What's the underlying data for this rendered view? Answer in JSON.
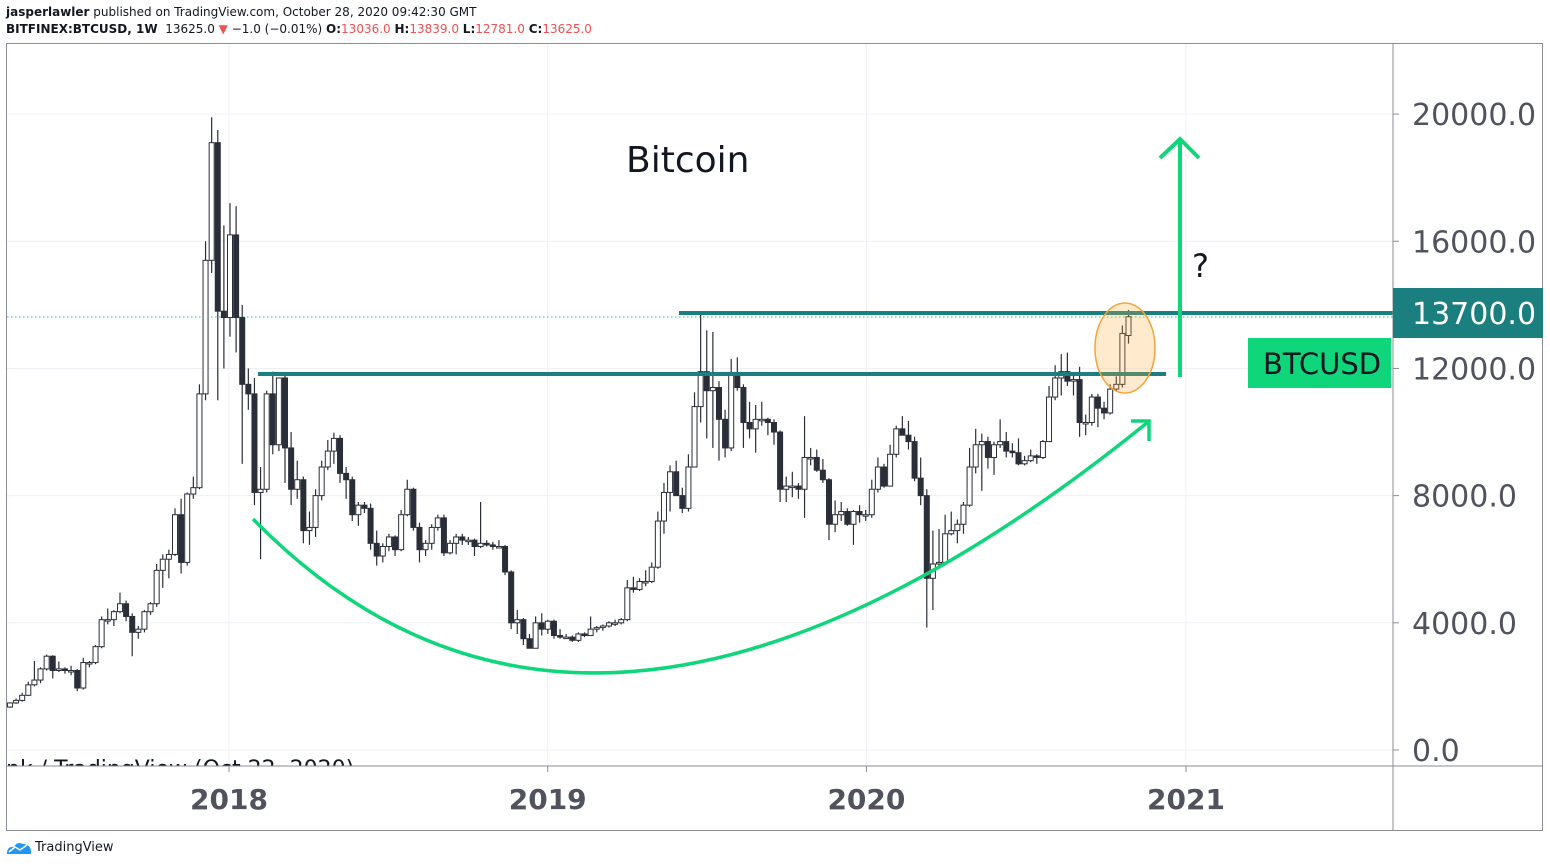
{
  "header": {
    "publisher": "jasperlawler",
    "published_text": "published on TradingView.com, October 28, 2020 09:42:30 GMT",
    "symbol": "BITFINEX:BTCUSD, 1W",
    "last": "13625.0",
    "change": "−1.0 (−0.01%)",
    "o_label": "O:",
    "o": "13036.0",
    "h_label": "H:",
    "h": "13839.0",
    "l_label": "L:",
    "l": "12781.0",
    "c_label": "C:",
    "c": "13625.0"
  },
  "annotations": {
    "title": "Bitcoin",
    "question": "?",
    "symbol_label": "BTCUSD",
    "price_label": "13700.0",
    "watermark": "nk / TradingView (Oct 22, 2020)"
  },
  "footer": {
    "brand": "TradingView"
  },
  "colors": {
    "up_fill": "#ffffff",
    "down_fill": "#2a2e39",
    "teal": "#1b7f7f",
    "green": "#0fd67a",
    "orange": "#f7a337"
  },
  "chart_data": {
    "type": "candlestick",
    "interval": "1W",
    "ylim": [
      0,
      21500
    ],
    "y_ticks": [
      "0.0",
      "4000.0",
      "8000.0",
      "12000.0",
      "16000.0",
      "20000.0"
    ],
    "y_tick_values": [
      0,
      4000,
      8000,
      12000,
      16000,
      20000
    ],
    "x_ticks": [
      "2018",
      "2019",
      "2020",
      "2021"
    ],
    "x_tick_dates": [
      "2018-01-01",
      "2019-01-01",
      "2020-01-01",
      "2021-01-01"
    ],
    "grid": true,
    "horizontal_levels": [
      11800,
      13700
    ],
    "current_price": 13625,
    "candles": [
      [
        "2017-04-24",
        1350,
        1500,
        1330,
        1480
      ],
      [
        "2017-05-01",
        1480,
        1620,
        1450,
        1560
      ],
      [
        "2017-05-08",
        1560,
        1800,
        1520,
        1720
      ],
      [
        "2017-05-15",
        1720,
        2150,
        1700,
        2050
      ],
      [
        "2017-05-22",
        2050,
        2800,
        2000,
        2200
      ],
      [
        "2017-05-29",
        2200,
        2600,
        2100,
        2550
      ],
      [
        "2017-06-05",
        2550,
        3000,
        2500,
        2950
      ],
      [
        "2017-06-12",
        2950,
        2980,
        2250,
        2500
      ],
      [
        "2017-06-19",
        2500,
        2780,
        2450,
        2550
      ],
      [
        "2017-06-26",
        2550,
        2600,
        2400,
        2500
      ],
      [
        "2017-07-03",
        2500,
        2650,
        2350,
        2500
      ],
      [
        "2017-07-10",
        2500,
        2550,
        1850,
        1950
      ],
      [
        "2017-07-17",
        1950,
        2900,
        1900,
        2750
      ],
      [
        "2017-07-24",
        2750,
        2800,
        2600,
        2750
      ],
      [
        "2017-07-31",
        2750,
        3300,
        2700,
        3250
      ],
      [
        "2017-08-07",
        3250,
        4200,
        3200,
        4100
      ],
      [
        "2017-08-14",
        4100,
        4450,
        3950,
        4100
      ],
      [
        "2017-08-21",
        4100,
        4400,
        3900,
        4350
      ],
      [
        "2017-08-28",
        4350,
        4950,
        4300,
        4600
      ],
      [
        "2017-09-04",
        4600,
        4700,
        4050,
        4200
      ],
      [
        "2017-09-11",
        4200,
        4300,
        2950,
        3700
      ],
      [
        "2017-09-18",
        3700,
        3900,
        3500,
        3800
      ],
      [
        "2017-09-25",
        3800,
        4400,
        3700,
        4350
      ],
      [
        "2017-10-02",
        4350,
        4650,
        4250,
        4600
      ],
      [
        "2017-10-09",
        4600,
        5850,
        4500,
        5650
      ],
      [
        "2017-10-16",
        5650,
        6150,
        5100,
        6000
      ],
      [
        "2017-10-23",
        6000,
        6300,
        5400,
        6150
      ],
      [
        "2017-10-30",
        6150,
        7600,
        6100,
        7400
      ],
      [
        "2017-11-06",
        7400,
        7900,
        5550,
        5900
      ],
      [
        "2017-11-13",
        5900,
        8100,
        5800,
        8050
      ],
      [
        "2017-11-20",
        8050,
        8600,
        7900,
        8250
      ],
      [
        "2017-11-27",
        8250,
        11500,
        8200,
        11200
      ],
      [
        "2017-12-04",
        11200,
        16000,
        11000,
        15400
      ],
      [
        "2017-12-11",
        15400,
        19900,
        15000,
        19100
      ],
      [
        "2017-12-18",
        19100,
        19500,
        11000,
        13800
      ],
      [
        "2017-12-25",
        13800,
        16500,
        12000,
        13600
      ],
      [
        "2018-01-01",
        13600,
        17200,
        13000,
        16200
      ],
      [
        "2018-01-08",
        16200,
        17100,
        12500,
        13600
      ],
      [
        "2018-01-15",
        13600,
        14000,
        9000,
        11500
      ],
      [
        "2018-01-22",
        11500,
        12000,
        10700,
        11200
      ],
      [
        "2018-01-29",
        11200,
        11700,
        7700,
        8100
      ],
      [
        "2018-02-05",
        8100,
        8900,
        6000,
        8200
      ],
      [
        "2018-02-12",
        8200,
        11300,
        8100,
        11200
      ],
      [
        "2018-02-19",
        11200,
        11900,
        9300,
        9600
      ],
      [
        "2018-02-26",
        9600,
        11700,
        9400,
        11700
      ],
      [
        "2018-03-05",
        11700,
        11800,
        8400,
        9500
      ],
      [
        "2018-03-12",
        9500,
        10000,
        7700,
        8200
      ],
      [
        "2018-03-19",
        8200,
        9100,
        7900,
        8500
      ],
      [
        "2018-03-26",
        8500,
        8600,
        6500,
        6900
      ],
      [
        "2018-04-02",
        6900,
        7500,
        6450,
        7000
      ],
      [
        "2018-04-09",
        7000,
        8200,
        6700,
        8000
      ],
      [
        "2018-04-16",
        8000,
        9100,
        7850,
        8900
      ],
      [
        "2018-04-23",
        8900,
        9750,
        8800,
        9400
      ],
      [
        "2018-04-30",
        9400,
        9980,
        9000,
        9800
      ],
      [
        "2018-05-07",
        9800,
        9900,
        8400,
        8700
      ],
      [
        "2018-05-14",
        8700,
        8900,
        7900,
        8500
      ],
      [
        "2018-05-21",
        8500,
        8600,
        7200,
        7400
      ],
      [
        "2018-05-28",
        7400,
        7800,
        7050,
        7700
      ],
      [
        "2018-06-04",
        7700,
        7800,
        7450,
        7600
      ],
      [
        "2018-06-11",
        7600,
        7750,
        6300,
        6500
      ],
      [
        "2018-06-18",
        6500,
        6900,
        5800,
        6100
      ],
      [
        "2018-06-25",
        6100,
        6500,
        5900,
        6400
      ],
      [
        "2018-07-02",
        6400,
        6800,
        6250,
        6700
      ],
      [
        "2018-07-09",
        6700,
        6750,
        6100,
        6300
      ],
      [
        "2018-07-16",
        6300,
        7550,
        6250,
        7400
      ],
      [
        "2018-07-23",
        7400,
        8500,
        7350,
        8200
      ],
      [
        "2018-07-30",
        8200,
        8250,
        6900,
        7000
      ],
      [
        "2018-08-06",
        7000,
        7150,
        5900,
        6300
      ],
      [
        "2018-08-13",
        6300,
        6600,
        6100,
        6500
      ],
      [
        "2018-08-20",
        6500,
        7100,
        6300,
        7000
      ],
      [
        "2018-08-27",
        7000,
        7400,
        6900,
        7300
      ],
      [
        "2018-09-03",
        7300,
        7400,
        6100,
        6200
      ],
      [
        "2018-09-10",
        6200,
        6600,
        6150,
        6500
      ],
      [
        "2018-09-17",
        6500,
        6800,
        6150,
        6700
      ],
      [
        "2018-09-24",
        6700,
        6800,
        6450,
        6600
      ],
      [
        "2018-10-01",
        6600,
        6700,
        6450,
        6600
      ],
      [
        "2018-10-08",
        6600,
        6650,
        6100,
        6400
      ],
      [
        "2018-10-15",
        6400,
        7800,
        6350,
        6500
      ],
      [
        "2018-10-22",
        6500,
        6600,
        6400,
        6450
      ],
      [
        "2018-10-29",
        6450,
        6550,
        6300,
        6400
      ],
      [
        "2018-11-05",
        6400,
        6600,
        6350,
        6400
      ],
      [
        "2018-11-12",
        6400,
        6450,
        5500,
        5600
      ],
      [
        "2018-11-19",
        5600,
        5650,
        3800,
        4000
      ],
      [
        "2018-11-26",
        4000,
        4400,
        3650,
        4100
      ],
      [
        "2018-12-03",
        4100,
        4150,
        3300,
        3500
      ],
      [
        "2018-12-10",
        3500,
        3650,
        3200,
        3200
      ],
      [
        "2018-12-17",
        3200,
        4200,
        3200,
        4000
      ],
      [
        "2018-12-24",
        4000,
        4300,
        3600,
        3800
      ],
      [
        "2018-12-31",
        3800,
        4100,
        3650,
        4050
      ],
      [
        "2019-01-07",
        4050,
        4100,
        3500,
        3600
      ],
      [
        "2019-01-14",
        3600,
        3800,
        3500,
        3550
      ],
      [
        "2019-01-21",
        3550,
        3650,
        3500,
        3550
      ],
      [
        "2019-01-28",
        3550,
        3600,
        3400,
        3450
      ],
      [
        "2019-02-04",
        3450,
        3700,
        3400,
        3650
      ],
      [
        "2019-02-11",
        3650,
        3700,
        3550,
        3600
      ],
      [
        "2019-02-18",
        3600,
        4200,
        3600,
        3800
      ],
      [
        "2019-02-25",
        3800,
        3900,
        3700,
        3850
      ],
      [
        "2019-03-04",
        3850,
        3950,
        3750,
        3900
      ],
      [
        "2019-03-11",
        3900,
        4050,
        3850,
        4000
      ],
      [
        "2019-03-18",
        4000,
        4100,
        3900,
        4000
      ],
      [
        "2019-03-25",
        4000,
        4150,
        3950,
        4100
      ],
      [
        "2019-04-01",
        4100,
        5350,
        4050,
        5100
      ],
      [
        "2019-04-08",
        5100,
        5450,
        4950,
        5050
      ],
      [
        "2019-04-15",
        5050,
        5400,
        5000,
        5300
      ],
      [
        "2019-04-22",
        5300,
        5650,
        5150,
        5300
      ],
      [
        "2019-04-29",
        5300,
        5900,
        5250,
        5750
      ],
      [
        "2019-05-06",
        5750,
        7500,
        5700,
        7200
      ],
      [
        "2019-05-13",
        7200,
        8400,
        6800,
        8100
      ],
      [
        "2019-05-20",
        8100,
        8950,
        7500,
        8750
      ],
      [
        "2019-05-27",
        8750,
        9100,
        8050,
        8000
      ],
      [
        "2019-06-03",
        8000,
        8250,
        7450,
        7600
      ],
      [
        "2019-06-10",
        7600,
        9300,
        7500,
        8900
      ],
      [
        "2019-06-17",
        8900,
        11250,
        8900,
        10800
      ],
      [
        "2019-06-24",
        10800,
        13800,
        10300,
        11900
      ],
      [
        "2019-07-01",
        11900,
        13200,
        9800,
        11300
      ],
      [
        "2019-07-08",
        11300,
        13150,
        9500,
        11400
      ],
      [
        "2019-07-15",
        11400,
        11600,
        9100,
        10400
      ],
      [
        "2019-07-22",
        10400,
        10700,
        9200,
        9500
      ],
      [
        "2019-07-29",
        9500,
        12300,
        9400,
        11800
      ],
      [
        "2019-08-05",
        11800,
        12350,
        11300,
        11400
      ],
      [
        "2019-08-12",
        11400,
        11500,
        9500,
        10300
      ],
      [
        "2019-08-19",
        10300,
        10950,
        9800,
        10100
      ],
      [
        "2019-08-26",
        10100,
        10850,
        9350,
        10400
      ],
      [
        "2019-09-02",
        10400,
        10950,
        10200,
        10400
      ],
      [
        "2019-09-09",
        10400,
        10450,
        9900,
        10300
      ],
      [
        "2019-09-16",
        10300,
        10400,
        9600,
        10000
      ],
      [
        "2019-09-23",
        10000,
        10050,
        7800,
        8200
      ],
      [
        "2019-09-30",
        8200,
        8600,
        7800,
        8300
      ],
      [
        "2019-10-07",
        8300,
        8750,
        7950,
        8300
      ],
      [
        "2019-10-14",
        8300,
        8400,
        7900,
        8200
      ],
      [
        "2019-10-21",
        8200,
        10500,
        7300,
        9200
      ],
      [
        "2019-10-28",
        9200,
        9500,
        8950,
        9200
      ],
      [
        "2019-11-04",
        9200,
        9450,
        8750,
        8800
      ],
      [
        "2019-11-11",
        8800,
        9150,
        8400,
        8500
      ],
      [
        "2019-11-18",
        8500,
        8550,
        6600,
        7100
      ],
      [
        "2019-11-25",
        7100,
        7850,
        6850,
        7400
      ],
      [
        "2019-12-02",
        7400,
        7800,
        7200,
        7500
      ],
      [
        "2019-12-09",
        7500,
        7600,
        7050,
        7100
      ],
      [
        "2019-12-16",
        7100,
        7550,
        6450,
        7500
      ],
      [
        "2019-12-23",
        7500,
        7700,
        7150,
        7400
      ],
      [
        "2019-12-30",
        7400,
        7550,
        7200,
        7400
      ],
      [
        "2020-01-06",
        7400,
        8500,
        7300,
        8200
      ],
      [
        "2020-01-13",
        8200,
        9200,
        8100,
        8900
      ],
      [
        "2020-01-20",
        8900,
        9000,
        8250,
        8300
      ],
      [
        "2020-01-27",
        8300,
        9600,
        8300,
        9300
      ],
      [
        "2020-02-03",
        9300,
        10200,
        9200,
        10100
      ],
      [
        "2020-02-10",
        10100,
        10500,
        9900,
        9900
      ],
      [
        "2020-02-17",
        9900,
        10350,
        9450,
        9700
      ],
      [
        "2020-02-24",
        9700,
        9850,
        8450,
        8550
      ],
      [
        "2020-03-02",
        8550,
        9200,
        7700,
        8000
      ],
      [
        "2020-03-09",
        8000,
        8200,
        3850,
        5400
      ],
      [
        "2020-03-16",
        5400,
        6900,
        4400,
        5850
      ],
      [
        "2020-03-23",
        5850,
        6950,
        5700,
        5900
      ],
      [
        "2020-03-30",
        5900,
        7400,
        5900,
        6800
      ],
      [
        "2020-04-06",
        6800,
        7500,
        6750,
        6900
      ],
      [
        "2020-04-13",
        6900,
        7250,
        6500,
        7100
      ],
      [
        "2020-04-20",
        7100,
        7800,
        6800,
        7700
      ],
      [
        "2020-04-27",
        7700,
        9500,
        7650,
        8900
      ],
      [
        "2020-05-04",
        8900,
        10100,
        8700,
        9600
      ],
      [
        "2020-05-11",
        9600,
        9950,
        8150,
        9700
      ],
      [
        "2020-05-18",
        9700,
        9850,
        8850,
        9200
      ],
      [
        "2020-05-25",
        9200,
        9700,
        8650,
        9600
      ],
      [
        "2020-06-01",
        9600,
        10400,
        9500,
        9700
      ],
      [
        "2020-06-08",
        9700,
        10000,
        9200,
        9400
      ],
      [
        "2020-06-15",
        9400,
        9650,
        9200,
        9350
      ],
      [
        "2020-06-22",
        9350,
        9800,
        8950,
        9000
      ],
      [
        "2020-06-29",
        9000,
        9250,
        8950,
        9100
      ],
      [
        "2020-07-06",
        9100,
        9450,
        9050,
        9250
      ],
      [
        "2020-07-13",
        9250,
        9300,
        9000,
        9200
      ],
      [
        "2020-07-20",
        9200,
        9750,
        9150,
        9700
      ],
      [
        "2020-07-27",
        9700,
        11450,
        9700,
        11100
      ],
      [
        "2020-08-03",
        11100,
        12100,
        11000,
        11700
      ],
      [
        "2020-08-10",
        11700,
        12450,
        11150,
        11900
      ],
      [
        "2020-08-17",
        11900,
        12500,
        11450,
        11600
      ],
      [
        "2020-08-24",
        11600,
        11800,
        11150,
        11650
      ],
      [
        "2020-08-31",
        11650,
        12050,
        9850,
        10300
      ],
      [
        "2020-09-07",
        10300,
        10550,
        9900,
        10300
      ],
      [
        "2020-09-14",
        10300,
        11200,
        10200,
        11100
      ],
      [
        "2020-09-21",
        11100,
        11200,
        10150,
        10750
      ],
      [
        "2020-09-28",
        10750,
        10950,
        10400,
        10600
      ],
      [
        "2020-10-05",
        10600,
        11500,
        10550,
        11350
      ],
      [
        "2020-10-12",
        11350,
        11750,
        11300,
        11500
      ],
      [
        "2020-10-19",
        11500,
        13350,
        11400,
        13100
      ],
      [
        "2020-10-26",
        13036,
        13839,
        12781,
        13625
      ]
    ]
  }
}
